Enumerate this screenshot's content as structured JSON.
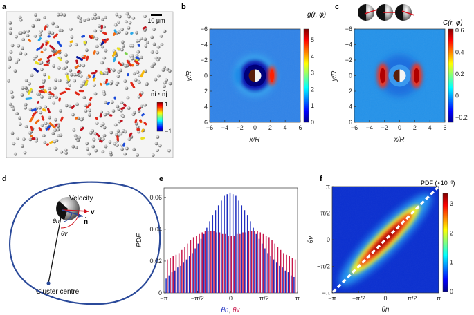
{
  "panels": {
    "a": {
      "label": "a",
      "scale_bar_label": "10 μm",
      "colorbar_title": "n̂i · n̂j",
      "colorbar_max": "1",
      "colorbar_min": "−1"
    },
    "b": {
      "label": "b",
      "colorbar_title": "g(r, φ)",
      "colorbar_ticks": [
        "5",
        "4",
        "3",
        "2",
        "1",
        "0"
      ],
      "x_ticks": [
        "−6",
        "−4",
        "−2",
        "0",
        "2",
        "4",
        "6"
      ],
      "y_ticks": [
        "−6",
        "−4",
        "−2",
        "0",
        "2",
        "4",
        "6"
      ],
      "xlabel": "x/R",
      "ylabel": "y/R"
    },
    "c": {
      "label": "c",
      "colorbar_title": "C(r, φ)",
      "colorbar_ticks": [
        "0.6",
        "0.4",
        "0.2",
        "0",
        "−0.2"
      ],
      "x_ticks": [
        "−6",
        "−4",
        "−2",
        "0",
        "2",
        "4",
        "6"
      ],
      "y_ticks": [
        "−6",
        "−4",
        "−2",
        "0",
        "2",
        "4",
        "6"
      ],
      "xlabel": "x/R",
      "ylabel": "y/R"
    },
    "d": {
      "label": "d",
      "velocity_label": "Velocity",
      "v_label": "v",
      "n_label": "n̂",
      "theta_n_label": "θn",
      "theta_v_label": "θv",
      "centre_label": "Cluster centre"
    },
    "e": {
      "label": "e",
      "ylabel": "PDF",
      "xlabel_n": "θn",
      "xlabel_sep": ", ",
      "xlabel_v": "θv",
      "x_ticks": [
        "−π",
        "−π/2",
        "0",
        "π/2",
        "π"
      ],
      "y_ticks": [
        "0",
        "0.02",
        "0.04",
        "0.06"
      ]
    },
    "f": {
      "label": "f",
      "colorbar_title": "PDF (×10⁻³)",
      "colorbar_ticks": [
        "3",
        "2",
        "1",
        "0"
      ],
      "x_ticks": [
        "−π",
        "−π/2",
        "0",
        "π/2",
        "π"
      ],
      "y_ticks": [
        "π",
        "π/2",
        "0",
        "−π/2",
        "−π"
      ],
      "xlabel": "θn",
      "ylabel": "θv"
    }
  },
  "chart_data": [
    {
      "panel": "e",
      "type": "bar",
      "title": "",
      "xlabel": "θn, θv",
      "ylabel": "PDF",
      "xlim": [
        -3.1416,
        3.1416
      ],
      "ylim": [
        0,
        0.066
      ],
      "series": [
        {
          "name": "θn",
          "color": "#1f2fbf",
          "values": [
            0.009,
            0.011,
            0.013,
            0.014,
            0.016,
            0.017,
            0.019,
            0.021,
            0.023,
            0.025,
            0.028,
            0.031,
            0.034,
            0.037,
            0.041,
            0.045,
            0.049,
            0.052,
            0.055,
            0.058,
            0.061,
            0.062,
            0.063,
            0.062,
            0.061,
            0.058,
            0.055,
            0.052,
            0.049,
            0.045,
            0.041,
            0.037,
            0.034,
            0.031,
            0.028,
            0.025,
            0.023,
            0.021,
            0.019,
            0.017,
            0.016,
            0.014,
            0.013,
            0.011,
            0.01
          ]
        },
        {
          "name": "θv",
          "color": "#c8174a",
          "values": [
            0.021,
            0.022,
            0.023,
            0.024,
            0.025,
            0.027,
            0.029,
            0.031,
            0.033,
            0.035,
            0.036,
            0.037,
            0.038,
            0.039,
            0.039,
            0.039,
            0.039,
            0.038,
            0.038,
            0.037,
            0.037,
            0.036,
            0.036,
            0.036,
            0.037,
            0.037,
            0.038,
            0.038,
            0.039,
            0.039,
            0.039,
            0.039,
            0.038,
            0.037,
            0.036,
            0.035,
            0.033,
            0.031,
            0.029,
            0.027,
            0.025,
            0.024,
            0.023,
            0.022,
            0.021
          ]
        }
      ]
    },
    {
      "panel": "b",
      "type": "heatmap",
      "title": "g(r, φ)",
      "xlabel": "x/R",
      "ylabel": "y/R",
      "xlim": [
        -6,
        6
      ],
      "ylim": [
        -6,
        6
      ],
      "colorbar_range": [
        0,
        5
      ]
    },
    {
      "panel": "c",
      "type": "heatmap",
      "title": "C(r, φ)",
      "xlabel": "x/R",
      "ylabel": "y/R",
      "xlim": [
        -6,
        6
      ],
      "ylim": [
        -6,
        6
      ],
      "colorbar_range": [
        -0.2,
        0.6
      ]
    },
    {
      "panel": "f",
      "type": "heatmap",
      "title": "PDF (×10⁻³)",
      "xlabel": "θn",
      "ylabel": "θv",
      "xlim": [
        -3.1416,
        3.1416
      ],
      "ylim": [
        -3.1416,
        3.1416
      ],
      "colorbar_range": [
        0,
        3.6
      ]
    }
  ]
}
